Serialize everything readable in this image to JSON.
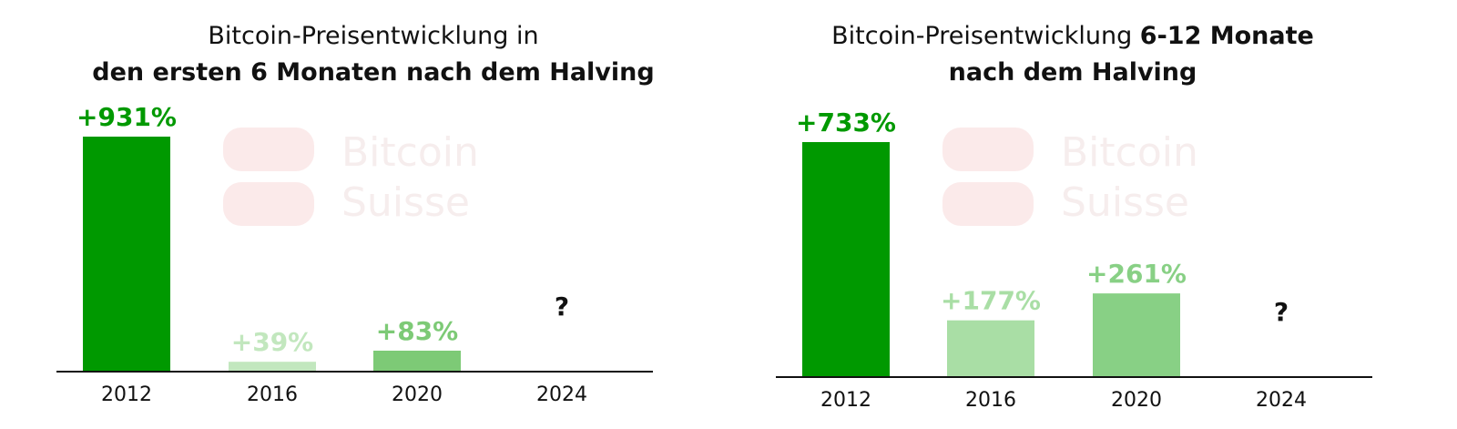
{
  "chart_data": [
    {
      "type": "bar",
      "title": [
        [
          {
            "text": "Bitcoin-Preisentwicklung in",
            "bold": false
          }
        ],
        [
          {
            "text": "den ersten 6 Monaten nach dem Halving",
            "bold": true
          }
        ]
      ],
      "watermark": [
        "Bitcoin",
        "Suisse"
      ],
      "categories": [
        "2012",
        "2016",
        "2020",
        "2024"
      ],
      "values": [
        931,
        39,
        83,
        null
      ],
      "value_labels": [
        "+931%",
        "+39%",
        "+83%",
        "?"
      ],
      "colors": [
        "#009900",
        "#c2e7be",
        "#7dca76",
        null
      ]
    },
    {
      "type": "bar",
      "title": [
        [
          {
            "text": "Bitcoin-Preisentwicklung ",
            "bold": false
          },
          {
            "text": "6-12 Monate",
            "bold": true
          }
        ],
        [
          {
            "text": "nach dem Halving",
            "bold": true
          }
        ]
      ],
      "watermark": [
        "Bitcoin",
        "Suisse"
      ],
      "categories": [
        "2012",
        "2016",
        "2020",
        "2024"
      ],
      "values": [
        733,
        177,
        261,
        null
      ],
      "value_labels": [
        "+733%",
        "+177%",
        "+261%",
        "?"
      ],
      "colors": [
        "#009900",
        "#a9dea5",
        "#88d085",
        null
      ]
    }
  ]
}
